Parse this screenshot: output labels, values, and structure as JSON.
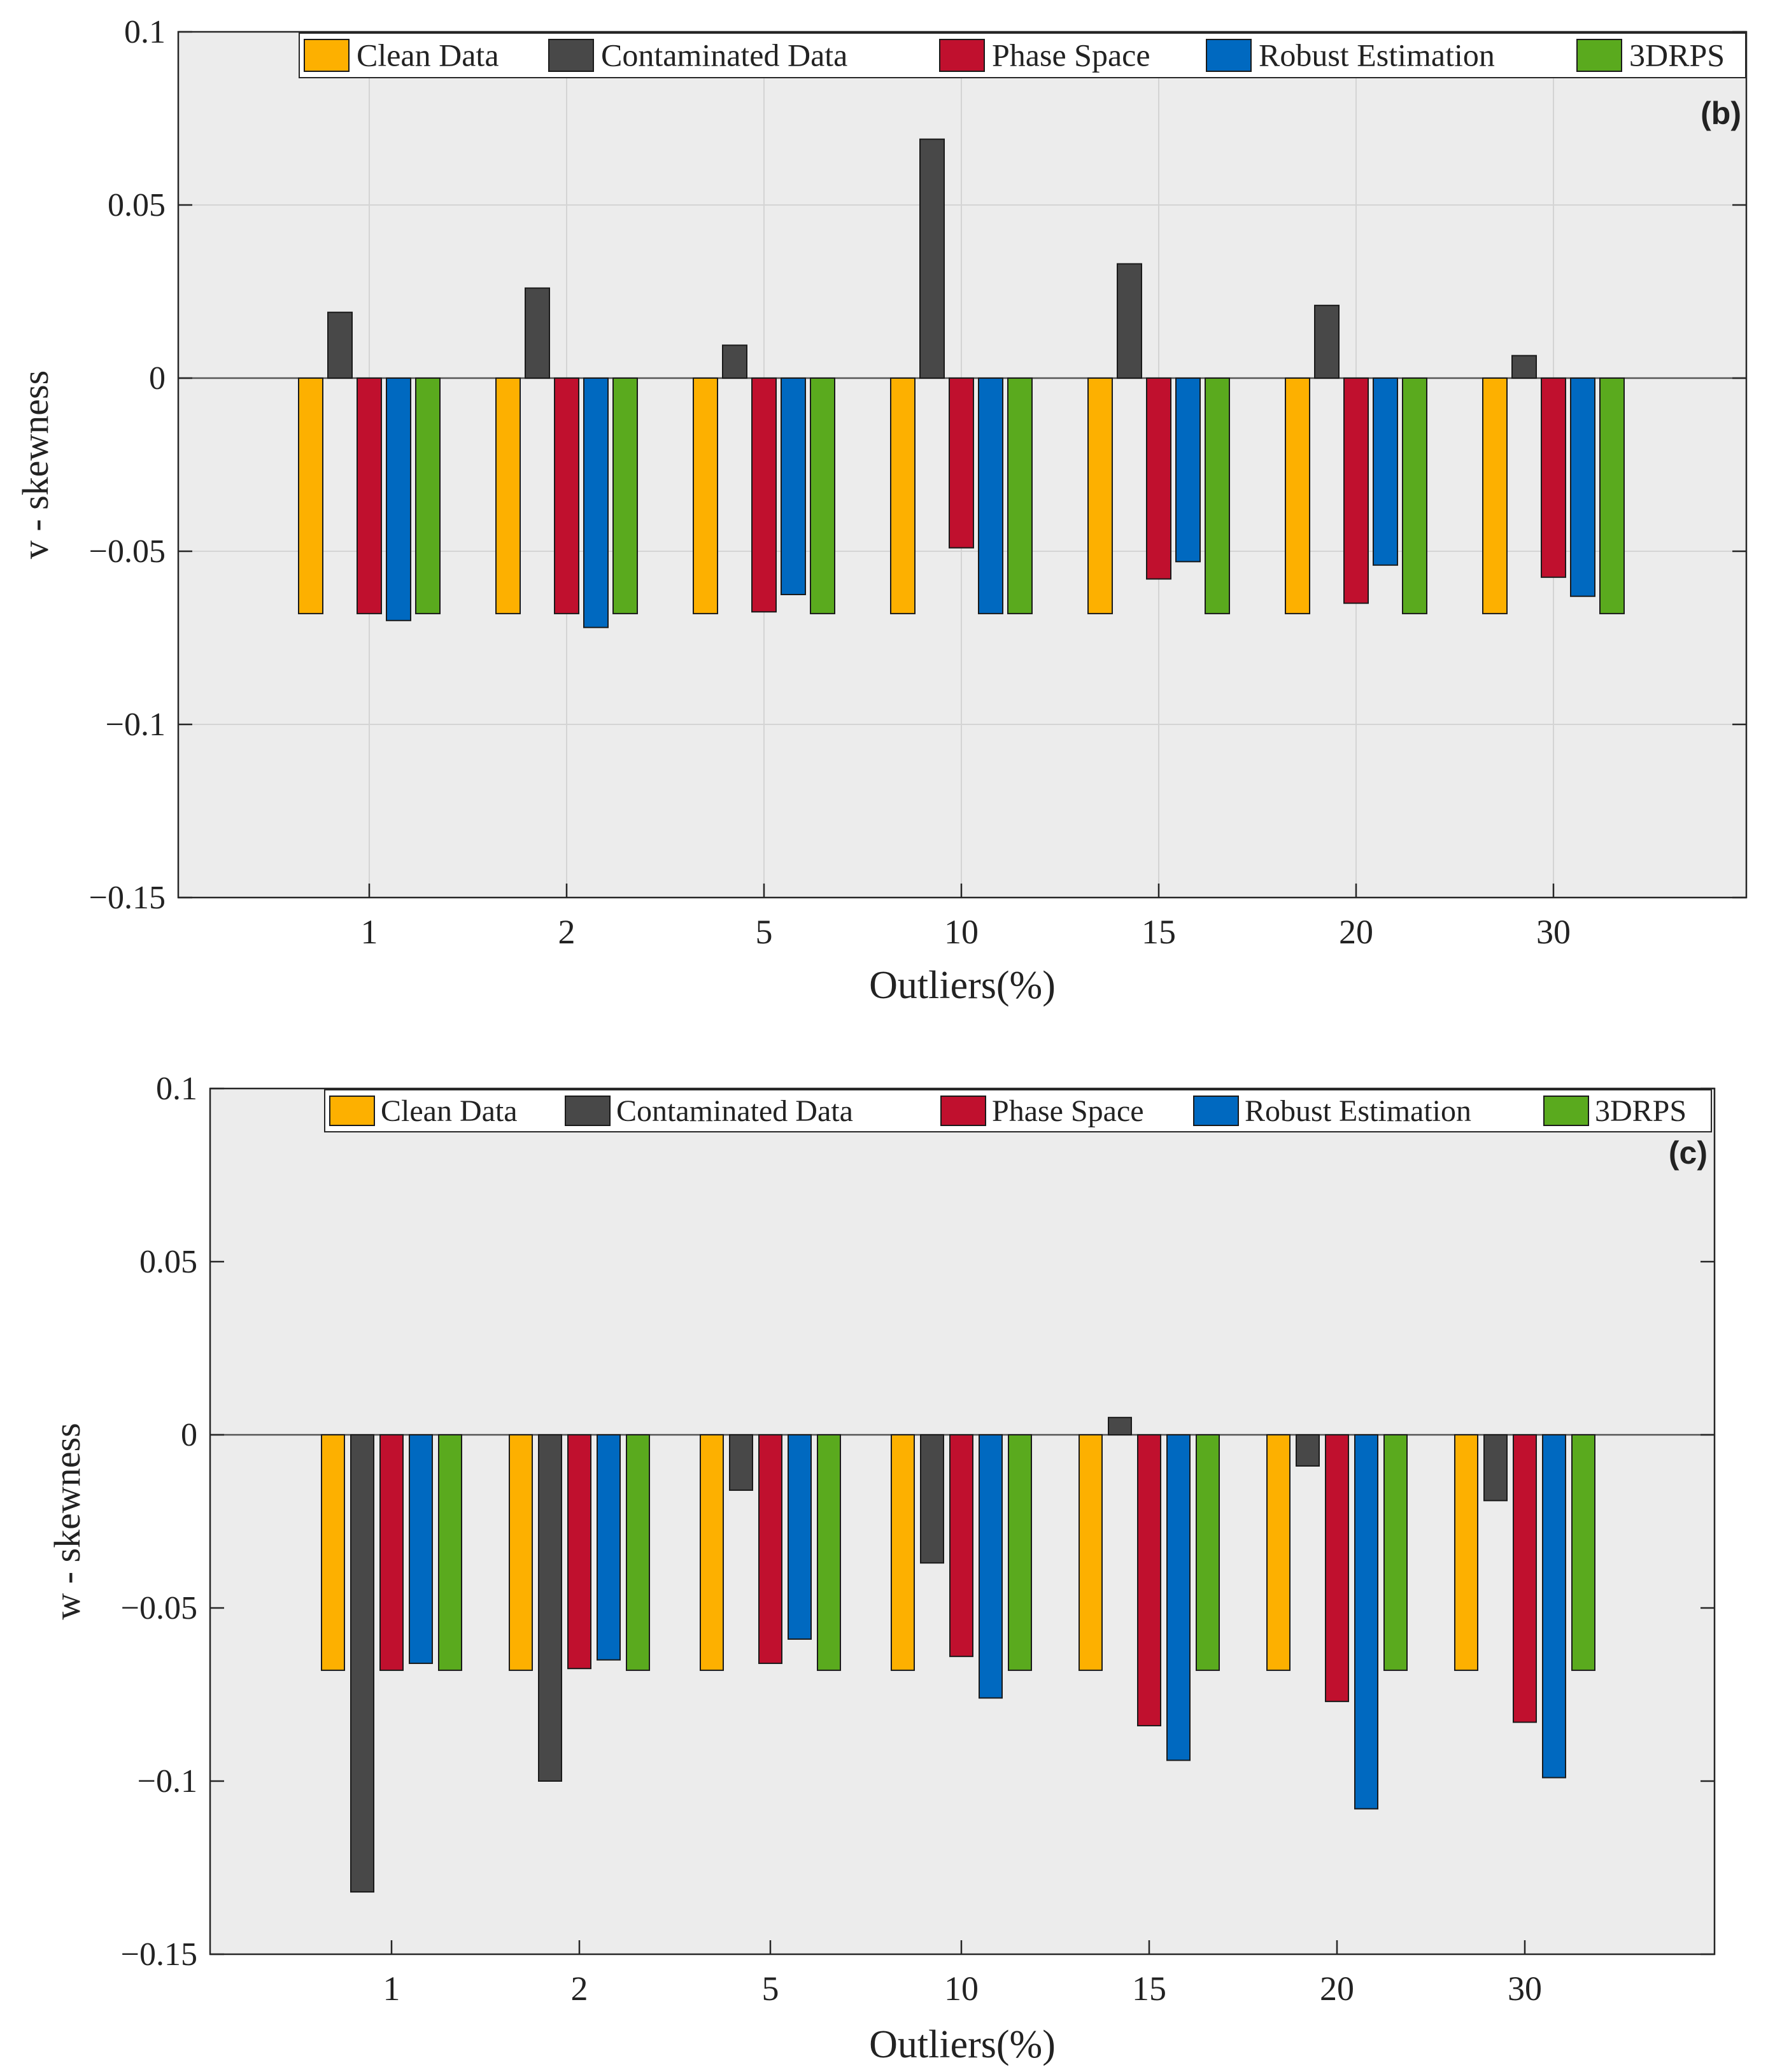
{
  "colors": {
    "plot_background": "#ececec",
    "grid": "#d4d4d4",
    "axis": "#262626",
    "bar_stroke": "#1a1a1a"
  },
  "series_colors": [
    "#fdb000",
    "#484848",
    "#c0102e",
    "#0069c0",
    "#5aaa1e"
  ],
  "chart_data": [
    {
      "type": "bar",
      "panel_label": "(b)",
      "xlabel": "Outliers(%)",
      "ylabel": "v - skewness",
      "ylim": [
        -0.15,
        0.1
      ],
      "yticks": [
        0.1,
        0.05,
        0,
        -0.05,
        -0.1,
        -0.15
      ],
      "ytick_labels": [
        "0.1",
        "0.05",
        "0",
        "−0.05",
        "−0.1",
        "−0.15"
      ],
      "grid": true,
      "legend_position": "top",
      "categories": [
        "1",
        "2",
        "5",
        "10",
        "15",
        "20",
        "30"
      ],
      "series": [
        {
          "name": "Clean Data",
          "values": [
            -0.068,
            -0.068,
            -0.068,
            -0.068,
            -0.068,
            -0.068,
            -0.068
          ]
        },
        {
          "name": "Contaminated Data",
          "values": [
            0.019,
            0.026,
            0.0095,
            0.069,
            0.033,
            0.021,
            0.0065
          ]
        },
        {
          "name": "Phase Space",
          "values": [
            -0.068,
            -0.068,
            -0.0675,
            -0.049,
            -0.058,
            -0.065,
            -0.0575
          ]
        },
        {
          "name": "Robust Estimation",
          "values": [
            -0.07,
            -0.072,
            -0.0625,
            -0.068,
            -0.053,
            -0.054,
            -0.063
          ]
        },
        {
          "name": "3DRPS",
          "values": [
            -0.068,
            -0.068,
            -0.068,
            -0.068,
            -0.068,
            -0.068,
            -0.068
          ]
        }
      ]
    },
    {
      "type": "bar",
      "panel_label": "(c)",
      "xlabel": "Outliers(%)",
      "ylabel": "w - skewness",
      "ylim": [
        -0.15,
        0.1
      ],
      "yticks": [
        0.1,
        0.05,
        0,
        -0.05,
        -0.1,
        -0.15
      ],
      "ytick_labels": [
        "0.1",
        "0.05",
        "0",
        "−0.05",
        "−0.1",
        "−0.15"
      ],
      "grid": false,
      "legend_position": "top",
      "categories": [
        "1",
        "2",
        "5",
        "10",
        "15",
        "20",
        "30"
      ],
      "series": [
        {
          "name": "Clean Data",
          "values": [
            -0.068,
            -0.068,
            -0.068,
            -0.068,
            -0.068,
            -0.068,
            -0.068
          ]
        },
        {
          "name": "Contaminated Data",
          "values": [
            -0.132,
            -0.1,
            -0.016,
            -0.037,
            0.005,
            -0.009,
            -0.019
          ]
        },
        {
          "name": "Phase Space",
          "values": [
            -0.068,
            -0.0675,
            -0.066,
            -0.064,
            -0.084,
            -0.077,
            -0.083
          ]
        },
        {
          "name": "Robust Estimation",
          "values": [
            -0.066,
            -0.065,
            -0.059,
            -0.076,
            -0.094,
            -0.108,
            -0.099
          ]
        },
        {
          "name": "3DRPS",
          "values": [
            -0.068,
            -0.068,
            -0.068,
            -0.068,
            -0.068,
            -0.068,
            -0.068
          ]
        }
      ]
    }
  ]
}
